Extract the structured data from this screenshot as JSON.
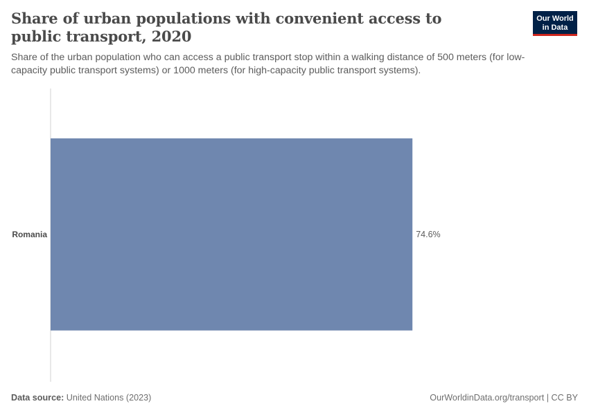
{
  "header": {
    "title": "Share of urban populations with convenient access to public transport, 2020",
    "subtitle": "Share of the urban population who can access a public transport stop within a walking distance of 500 meters (for low-capacity public transport systems) or 1000 meters (for high-capacity public transport systems).",
    "logo_line1": "Our World",
    "logo_line2": "in Data"
  },
  "footer": {
    "source_label": "Data source:",
    "source_value": "United Nations (2023)",
    "link": "OurWorldinData.org/transport | CC BY"
  },
  "chart_data": {
    "type": "bar",
    "orientation": "horizontal",
    "title": "Share of urban populations with convenient access to public transport, 2020",
    "subtitle": "Share of the urban population who can access a public transport stop within a walking distance of 500 meters (for low-capacity public transport systems) or 1000 meters (for high-capacity public transport systems).",
    "categories": [
      "Romania"
    ],
    "values": [
      74.6
    ],
    "value_labels": [
      "74.6%"
    ],
    "unit": "%",
    "xlim": [
      0,
      100
    ],
    "bar_color": "#6f87af",
    "axis_color": "#d0d0d0",
    "grid": false
  }
}
